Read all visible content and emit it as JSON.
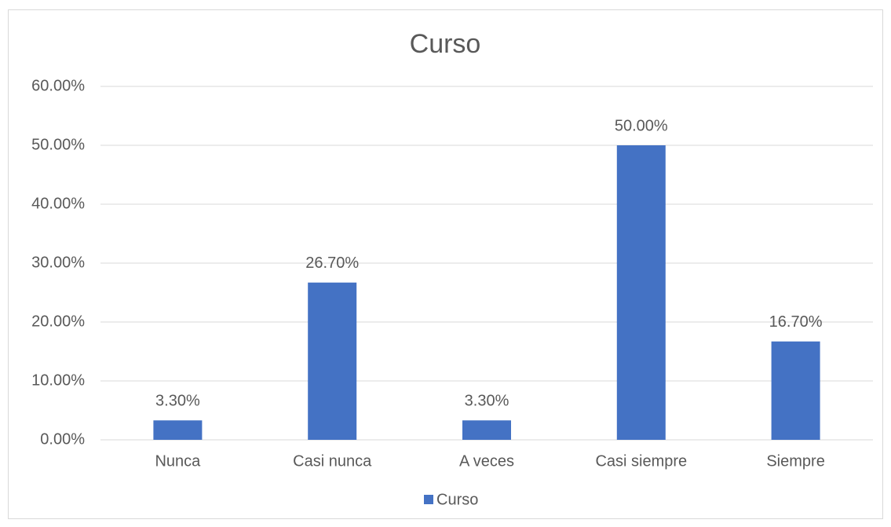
{
  "chart_data": {
    "type": "bar",
    "title": "Curso",
    "categories": [
      "Nunca",
      "Casi nunca",
      "A veces",
      "Casi siempre",
      "Siempre"
    ],
    "series": [
      {
        "name": "Curso",
        "color": "#4472c4",
        "values": [
          3.3,
          26.7,
          3.3,
          50,
          16.7
        ],
        "value_labels": [
          "3.30%",
          "26.70%",
          "3.30%",
          "50.00%",
          "16.70%"
        ]
      }
    ],
    "ylim": [
      0,
      60
    ],
    "yticks": [
      {
        "value": 0,
        "label": "0.00%"
      },
      {
        "value": 10,
        "label": "10.00%"
      },
      {
        "value": 20,
        "label": "20.00%"
      },
      {
        "value": 30,
        "label": "30.00%"
      },
      {
        "value": 40,
        "label": "40.00%"
      },
      {
        "value": 50,
        "label": "50.00%"
      },
      {
        "value": 60,
        "label": "60.00%"
      }
    ],
    "grid": true,
    "legend": "bottom"
  }
}
